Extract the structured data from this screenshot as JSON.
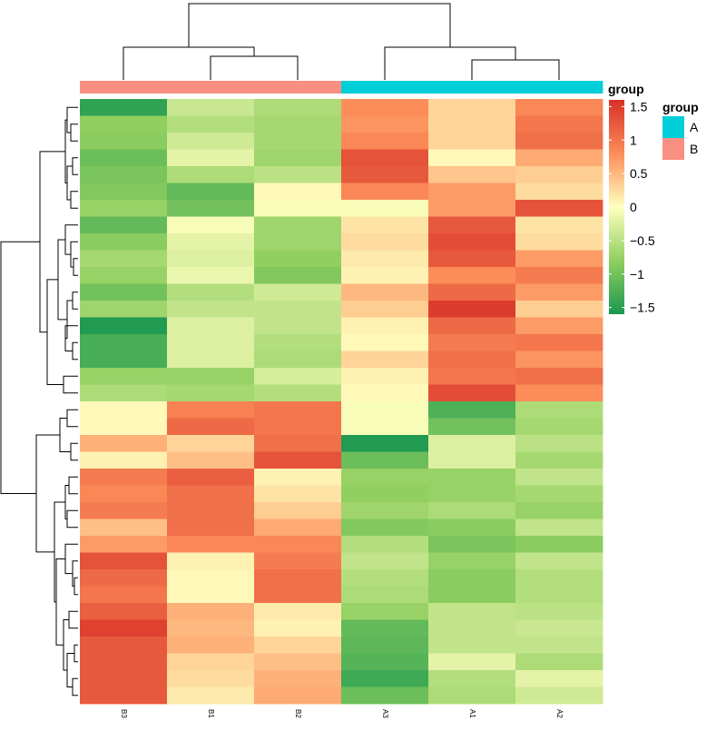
{
  "chart_data": {
    "type": "heatmap",
    "title": "",
    "xlabel": "",
    "ylabel": "",
    "columns": [
      "B3",
      "B1",
      "B2",
      "A3",
      "A1",
      "A2"
    ],
    "annotation": {
      "title": "group",
      "column_groups": [
        "B",
        "B",
        "B",
        "A",
        "A",
        "A"
      ],
      "levels": [
        {
          "name": "A",
          "color": "#00CED8"
        },
        {
          "name": "B",
          "color": "#F88F82"
        }
      ]
    },
    "color_scale": {
      "title": "group",
      "range": [
        -1.6,
        1.6
      ],
      "ticks": [
        1.5,
        1,
        0.5,
        0,
        -0.5,
        -1,
        -1.5
      ],
      "tick_labels": [
        "1.5",
        "1",
        "0.5",
        "0",
        "−0.5",
        "−1",
        "−1.5"
      ],
      "stops": [
        {
          "value": -1.6,
          "color": "#1A9850"
        },
        {
          "value": -0.8,
          "color": "#91CF60"
        },
        {
          "value": 0.0,
          "color": "#FFFFBF"
        },
        {
          "value": 0.8,
          "color": "#FC8D59"
        },
        {
          "value": 1.6,
          "color": "#D73027"
        }
      ]
    },
    "values": [
      [
        -1.45,
        -0.4,
        -0.6,
        0.8,
        0.3,
        0.85
      ],
      [
        -0.8,
        -0.55,
        -0.65,
        0.75,
        0.3,
        1.0
      ],
      [
        -0.85,
        -0.35,
        -0.65,
        0.85,
        0.3,
        1.05
      ],
      [
        -1.05,
        -0.2,
        -0.7,
        1.3,
        0.05,
        0.6
      ],
      [
        -0.95,
        -0.6,
        -0.5,
        1.25,
        0.4,
        0.35
      ],
      [
        -0.9,
        -1.1,
        0.05,
        0.85,
        0.7,
        0.25
      ],
      [
        -0.75,
        -1.0,
        -0.05,
        -0.05,
        0.7,
        1.3
      ],
      [
        -1.1,
        -0.05,
        -0.7,
        0.2,
        1.25,
        0.2
      ],
      [
        -0.85,
        -0.2,
        -0.7,
        0.25,
        1.35,
        0.25
      ],
      [
        -0.65,
        -0.25,
        -0.8,
        0.15,
        1.25,
        0.7
      ],
      [
        -0.75,
        -0.15,
        -0.9,
        0.1,
        0.8,
        0.95
      ],
      [
        -1.0,
        -0.55,
        -0.35,
        0.5,
        1.1,
        0.7
      ],
      [
        -0.7,
        -0.45,
        -0.45,
        0.35,
        1.5,
        0.35
      ],
      [
        -1.55,
        -0.25,
        -0.45,
        0.1,
        1.1,
        0.7
      ],
      [
        -1.3,
        -0.25,
        -0.55,
        0.05,
        0.95,
        1.0
      ],
      [
        -1.3,
        -0.25,
        -0.6,
        0.3,
        1.05,
        0.75
      ],
      [
        -0.75,
        -0.75,
        -0.3,
        0.1,
        1.0,
        1.05
      ],
      [
        -0.6,
        -0.65,
        -0.55,
        0.05,
        1.35,
        0.8
      ],
      [
        0.05,
        0.9,
        1.0,
        -0.05,
        -1.25,
        -0.6
      ],
      [
        0.05,
        1.1,
        1.0,
        -0.05,
        -1.0,
        -0.65
      ],
      [
        0.55,
        0.3,
        1.05,
        -1.55,
        -0.25,
        -0.5
      ],
      [
        0.1,
        0.45,
        1.3,
        -1.05,
        -0.25,
        -0.65
      ],
      [
        0.95,
        1.2,
        0.1,
        -0.75,
        -0.75,
        -0.45
      ],
      [
        0.85,
        1.05,
        0.2,
        -0.8,
        -0.75,
        -0.65
      ],
      [
        0.95,
        1.05,
        0.35,
        -0.7,
        -0.6,
        -0.75
      ],
      [
        0.45,
        1.05,
        0.6,
        -0.9,
        -0.85,
        -0.45
      ],
      [
        0.7,
        0.85,
        0.85,
        -0.55,
        -0.95,
        -0.85
      ],
      [
        1.3,
        0.1,
        0.95,
        -0.45,
        -0.75,
        -0.45
      ],
      [
        1.1,
        0.05,
        1.05,
        -0.55,
        -0.85,
        -0.55
      ],
      [
        1.0,
        0.05,
        1.05,
        -0.6,
        -0.85,
        -0.55
      ],
      [
        1.2,
        0.55,
        0.15,
        -0.75,
        -0.45,
        -0.5
      ],
      [
        1.45,
        0.5,
        0.1,
        -1.1,
        -0.45,
        -0.4
      ],
      [
        1.25,
        0.55,
        0.3,
        -1.15,
        -0.45,
        -0.45
      ],
      [
        1.25,
        0.3,
        0.45,
        -1.2,
        -0.2,
        -0.6
      ],
      [
        1.25,
        0.25,
        0.55,
        -1.35,
        -0.55,
        -0.2
      ],
      [
        1.25,
        0.15,
        0.6,
        -1.05,
        -0.6,
        -0.35
      ]
    ]
  }
}
